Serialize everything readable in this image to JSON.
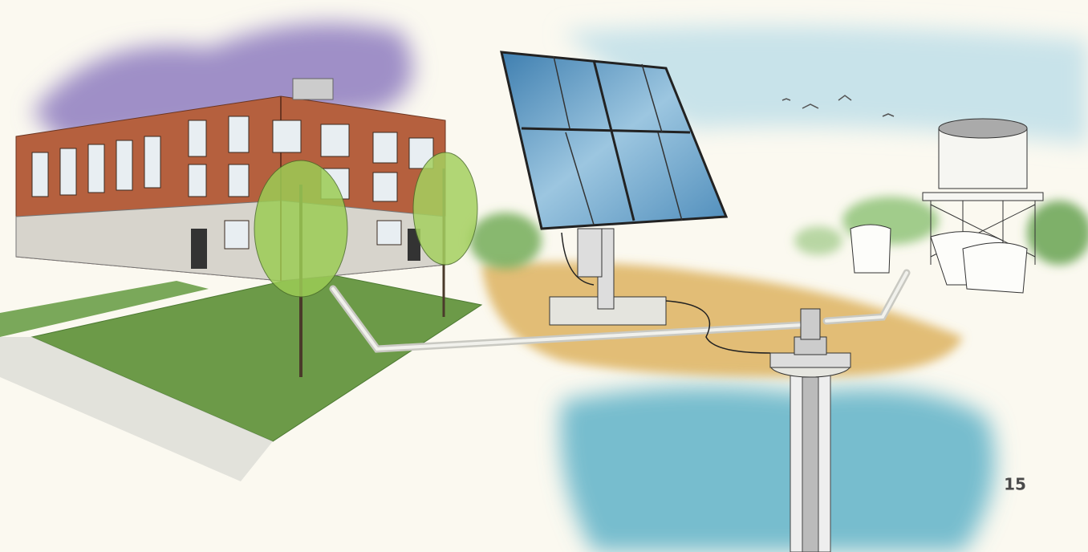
{
  "page_number": "15"
}
